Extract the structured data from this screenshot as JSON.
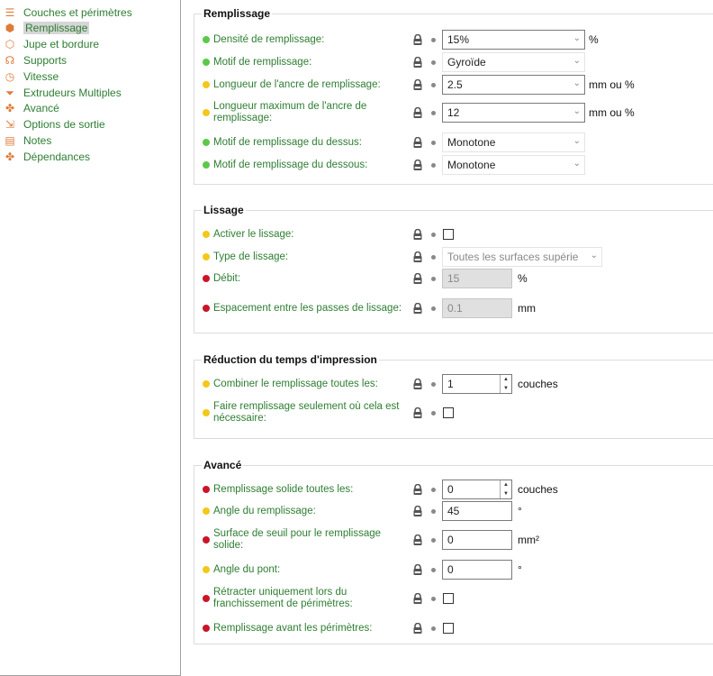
{
  "sidebar": {
    "items": [
      {
        "label": "Couches et périmètres",
        "icon": "layers-icon"
      },
      {
        "label": "Remplissage",
        "icon": "infill-icon",
        "selected": true
      },
      {
        "label": "Jupe et bordure",
        "icon": "skirt-icon"
      },
      {
        "label": "Supports",
        "icon": "support-icon"
      },
      {
        "label": "Vitesse",
        "icon": "speed-icon"
      },
      {
        "label": "Extrudeurs Multiples",
        "icon": "funnel-icon"
      },
      {
        "label": "Avancé",
        "icon": "wrench-icon"
      },
      {
        "label": "Options de sortie",
        "icon": "output-icon"
      },
      {
        "label": "Notes",
        "icon": "notes-icon"
      },
      {
        "label": "Dépendances",
        "icon": "dependencies-icon"
      }
    ]
  },
  "colors": {
    "simple": "#5cc84a",
    "advanced": "#f3c81a",
    "expert": "#c9152b",
    "label": "#2e7d32"
  },
  "sections": [
    {
      "title": "Remplissage",
      "rows": [
        {
          "label": "Densité de remplissage:",
          "level": "g",
          "type": "combo",
          "value": "15%",
          "unit": "%"
        },
        {
          "label": "Motif de remplissage:",
          "level": "g",
          "type": "select",
          "value": "Gyroïde"
        },
        {
          "label": "Longueur de l'ancre de remplissage:",
          "level": "y",
          "type": "combo",
          "value": "2.5",
          "unit": "mm ou %"
        },
        {
          "label": "Longueur maximum de l'ancre de remplissage:",
          "level": "y",
          "type": "combo",
          "value": "12",
          "unit": "mm ou %"
        },
        {
          "label": "Motif de remplissage du dessus:",
          "level": "g",
          "type": "select",
          "value": "Monotone"
        },
        {
          "label": "Motif de remplissage du dessous:",
          "level": "g",
          "type": "select",
          "value": "Monotone"
        }
      ]
    },
    {
      "title": "Lissage",
      "rows": [
        {
          "label": "Activer le lissage:",
          "level": "y",
          "type": "checkbox",
          "checked": false
        },
        {
          "label": "Type de lissage:",
          "level": "y",
          "type": "select-disabled",
          "value": "Toutes les surfaces supérie"
        },
        {
          "label": "Débit:",
          "level": "r",
          "type": "text-disabled",
          "value": "15",
          "unit": "%"
        },
        {
          "label": "Espacement entre les passes de lissage:",
          "level": "r",
          "type": "text-disabled",
          "value": "0.1",
          "unit": "mm"
        }
      ]
    },
    {
      "title": "Réduction du temps d'impression",
      "rows": [
        {
          "label": "Combiner le remplissage toutes les:",
          "level": "y",
          "type": "spin",
          "value": "1",
          "unit": "couches"
        },
        {
          "label": "Faire remplissage seulement où cela est nécessaire:",
          "level": "y",
          "type": "checkbox",
          "checked": false
        }
      ]
    },
    {
      "title": "Avancé",
      "rows": [
        {
          "label": "Remplissage solide toutes les:",
          "level": "r",
          "type": "spin",
          "value": "0",
          "unit": "couches"
        },
        {
          "label": "Angle du remplissage:",
          "level": "y",
          "type": "text",
          "value": "45",
          "unit": "°"
        },
        {
          "label": "Surface de seuil pour le remplissage solide:",
          "level": "r",
          "type": "text",
          "value": "0",
          "unit": "mm²"
        },
        {
          "label": "Angle du pont:",
          "level": "y",
          "type": "text",
          "value": "0",
          "unit": "°"
        },
        {
          "label": "Rétracter uniquement lors du franchissement de périmètres:",
          "level": "r",
          "type": "checkbox",
          "checked": false
        },
        {
          "label": "Remplissage avant les périmètres:",
          "level": "r",
          "type": "checkbox",
          "checked": false
        }
      ]
    }
  ]
}
